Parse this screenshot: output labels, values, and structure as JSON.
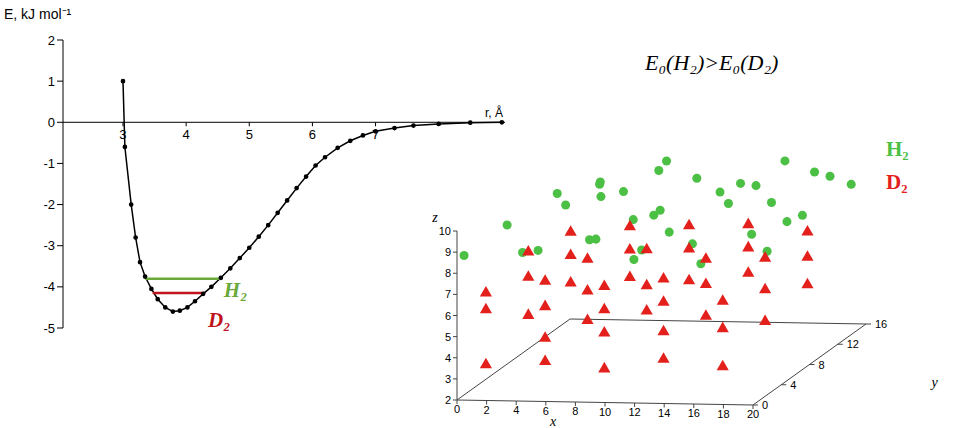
{
  "chart_data": [
    {
      "type": "line",
      "xlabel": "r, Å",
      "ylabel": "E, kJ mol⁻¹",
      "annotation": "E₀(H₂)>E₀(D₂)",
      "x": [
        3.0,
        3.03,
        3.13,
        3.2,
        3.27,
        3.35,
        3.45,
        3.55,
        3.67,
        3.79,
        3.9,
        4.02,
        4.14,
        4.27,
        4.4,
        4.55,
        4.7,
        4.85,
        5.0,
        5.15,
        5.3,
        5.45,
        5.6,
        5.75,
        5.9,
        6.05,
        6.2,
        6.4,
        6.6,
        6.8,
        7.0,
        7.3,
        7.6,
        8.0,
        8.5,
        9.0
      ],
      "values": [
        1.0,
        -0.6,
        -2.0,
        -2.8,
        -3.4,
        -3.75,
        -4.05,
        -4.3,
        -4.5,
        -4.6,
        -4.58,
        -4.5,
        -4.35,
        -4.17,
        -4.0,
        -3.78,
        -3.55,
        -3.3,
        -3.05,
        -2.78,
        -2.5,
        -2.2,
        -1.9,
        -1.6,
        -1.32,
        -1.05,
        -0.85,
        -0.62,
        -0.45,
        -0.32,
        -0.22,
        -0.14,
        -0.08,
        -0.04,
        -0.01,
        0
      ],
      "color": "#000000",
      "marker": "circle",
      "xlim": [
        2.05,
        9.05
      ],
      "ylim": [
        -5,
        2
      ],
      "xticks": [
        3,
        4,
        5,
        6,
        7
      ],
      "yticks": [
        -5,
        -4,
        -3,
        -2,
        -1,
        0,
        1,
        2
      ],
      "levels": [
        {
          "name": "H₂",
          "value": -3.8,
          "x": [
            3.35,
            4.55
          ],
          "color": "#6aaa3a"
        },
        {
          "name": "D₂",
          "value": -4.15,
          "x": [
            3.47,
            4.3
          ],
          "color": "#c0141c"
        }
      ]
    },
    {
      "type": "scatter3d",
      "xlabel": "x",
      "ylabel": "y",
      "zlabel": "z",
      "xlim": [
        0,
        20
      ],
      "ylim": [
        0,
        16
      ],
      "zlim": [
        2,
        10
      ],
      "xticks": [
        0,
        2,
        4,
        6,
        8,
        10,
        12,
        14,
        16,
        18,
        20
      ],
      "yticks": [
        0,
        4,
        8,
        12,
        16
      ],
      "zticks": [
        2,
        3,
        4,
        5,
        6,
        7,
        8,
        9,
        10
      ],
      "legend": "top-right",
      "series": [
        {
          "name": "H₂",
          "color": "#4cbf45",
          "marker": "circle",
          "points": [
            [
              0,
              1,
              8.6
            ],
            [
              1,
              5,
              9.1
            ],
            [
              2,
              10,
              9.4
            ],
            [
              3,
              3,
              8.3
            ],
            [
              3,
              14,
              9.0
            ],
            [
              4,
              7,
              9.6
            ],
            [
              5,
              1,
              8.9
            ],
            [
              6,
              11,
              9.3
            ],
            [
              7,
              5,
              8.5
            ],
            [
              7,
              15,
              9.8
            ],
            [
              8,
              2,
              9.2
            ],
            [
              9,
              9,
              8.7
            ],
            [
              10,
              13,
              9.5
            ],
            [
              10,
              4,
              9.7
            ],
            [
              11,
              7,
              8.4
            ],
            [
              12,
              1,
              9.0
            ],
            [
              12,
              15,
              8.8
            ],
            [
              13,
              10,
              9.6
            ],
            [
              14,
              4,
              8.6
            ],
            [
              14,
              13,
              9.2
            ],
            [
              15,
              7,
              9.8
            ],
            [
              16,
              1,
              8.4
            ],
            [
              16,
              11,
              8.9
            ],
            [
              17,
              15,
              9.4
            ],
            [
              18,
              4,
              9.1
            ],
            [
              18,
              9,
              8.5
            ],
            [
              19,
              13,
              9.7
            ],
            [
              20,
              2,
              8.8
            ],
            [
              20,
              7,
              9.3
            ],
            [
              19,
              16,
              8.6
            ],
            [
              2,
              16,
              8.4
            ],
            [
              6,
              16,
              9.1
            ],
            [
              11,
              2,
              8.3
            ],
            [
              15,
              15,
              9.9
            ],
            [
              8,
              12,
              8.2
            ],
            [
              4,
              12,
              8.8
            ]
          ]
        },
        {
          "name": "D₂",
          "color": "#e3201b",
          "marker": "triangle",
          "points": [
            [
              1,
              2,
              3.2
            ],
            [
              1,
              2,
              5.8
            ],
            [
              1,
              2,
              6.6
            ],
            [
              1,
              8,
              4.1
            ],
            [
              1,
              8,
              5.9
            ],
            [
              1,
              8,
              7.1
            ],
            [
              1,
              14,
              4.2
            ],
            [
              1,
              14,
              5.5
            ],
            [
              1,
              14,
              6.6
            ],
            [
              5,
              2,
              3.4
            ],
            [
              5,
              2,
              4.5
            ],
            [
              5,
              2,
              6.0
            ],
            [
              5,
              2,
              7.2
            ],
            [
              5,
              8,
              3.9
            ],
            [
              5,
              8,
              5.3
            ],
            [
              5,
              8,
              6.8
            ],
            [
              5,
              14,
              4.5
            ],
            [
              5,
              14,
              5.8
            ],
            [
              5,
              14,
              6.9
            ],
            [
              9,
              2,
              3.1
            ],
            [
              9,
              2,
              4.8
            ],
            [
              9,
              2,
              5.9
            ],
            [
              9,
              2,
              7.0
            ],
            [
              9,
              8,
              4.4
            ],
            [
              9,
              8,
              5.6
            ],
            [
              9,
              8,
              7.3
            ],
            [
              9,
              14,
              4.4
            ],
            [
              9,
              14,
              5.9
            ],
            [
              9,
              14,
              7.0
            ],
            [
              13,
              2,
              3.6
            ],
            [
              13,
              2,
              4.9
            ],
            [
              13,
              2,
              6.3
            ],
            [
              13,
              2,
              7.4
            ],
            [
              13,
              8,
              4.2
            ],
            [
              13,
              8,
              5.7
            ],
            [
              13,
              8,
              6.9
            ],
            [
              13,
              14,
              4.8
            ],
            [
              13,
              14,
              6.0
            ],
            [
              13,
              14,
              7.1
            ],
            [
              17,
              2,
              3.3
            ],
            [
              17,
              2,
              5.1
            ],
            [
              17,
              2,
              6.4
            ],
            [
              17,
              8,
              4.0
            ],
            [
              17,
              8,
              5.5
            ],
            [
              17,
              8,
              7.0
            ],
            [
              17,
              14,
              4.3
            ],
            [
              17,
              14,
              5.6
            ],
            [
              17,
              14,
              6.8
            ]
          ]
        }
      ]
    }
  ]
}
